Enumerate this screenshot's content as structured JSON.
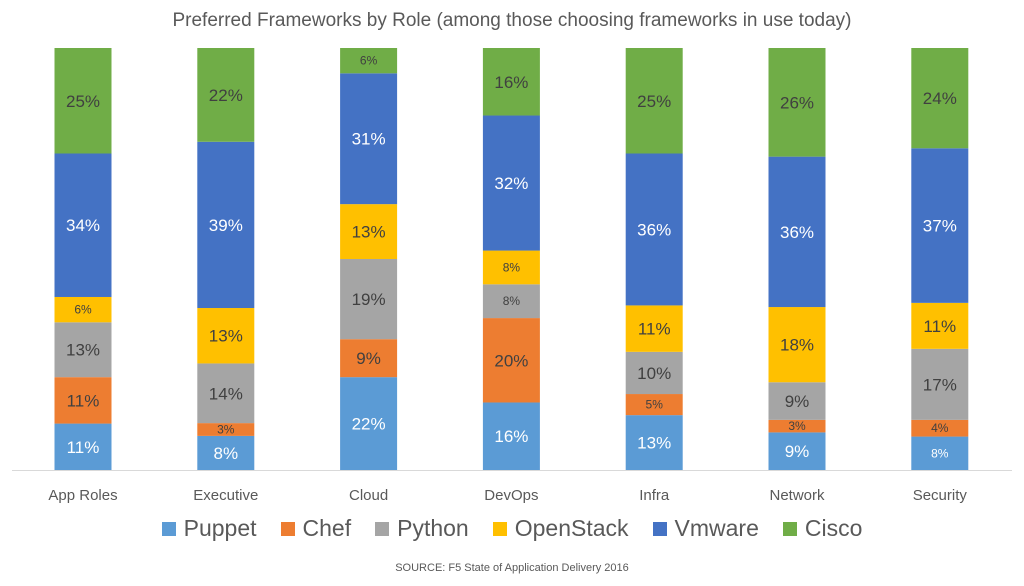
{
  "chart_data": {
    "type": "bar",
    "stacked": true,
    "title": "Preferred Frameworks by Role (among those choosing frameworks in use today)",
    "categories": [
      "App Roles",
      "Executive",
      "Cloud",
      "DevOps",
      "Infra",
      "Network",
      "Security"
    ],
    "series": [
      {
        "name": "Puppet",
        "color": "#5B9BD5",
        "values": [
          11,
          8,
          22,
          16,
          13,
          9,
          8
        ]
      },
      {
        "name": "Chef",
        "color": "#ED7D31",
        "values": [
          11,
          3,
          9,
          20,
          5,
          3,
          4
        ]
      },
      {
        "name": "Python",
        "color": "#A5A5A5",
        "values": [
          13,
          14,
          19,
          8,
          10,
          9,
          17
        ]
      },
      {
        "name": "OpenStack",
        "color": "#FFC000",
        "values": [
          6,
          13,
          13,
          8,
          11,
          18,
          11
        ]
      },
      {
        "name": "Vmware",
        "color": "#4472C4",
        "values": [
          34,
          39,
          31,
          32,
          36,
          36,
          37
        ]
      },
      {
        "name": "Cisco",
        "color": "#70AD47",
        "values": [
          25,
          22,
          6,
          16,
          25,
          26,
          24
        ]
      }
    ],
    "value_suffix": "%",
    "legend_position": "bottom",
    "grid": false,
    "source": "SOURCE: F5 State of Application Delivery 2016"
  }
}
